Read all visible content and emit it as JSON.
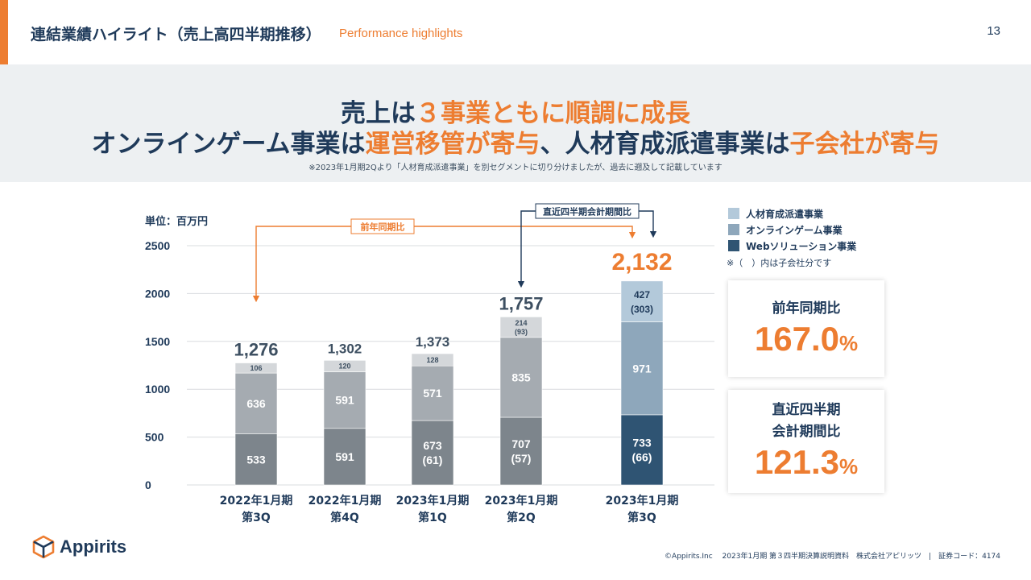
{
  "header": {
    "title": "連結業績ハイライト（売上高四半期推移）",
    "subtitle": "Performance highlights",
    "page_number": "13"
  },
  "headline": {
    "line1": [
      {
        "text": "売上は",
        "highlight": false
      },
      {
        "text": "３事業ともに順調に成長",
        "highlight": true
      }
    ],
    "line2": [
      {
        "text": "オンラインゲーム事業は",
        "highlight": false
      },
      {
        "text": "運営移管が寄与",
        "highlight": true
      },
      {
        "text": "、人材育成派遣事業は",
        "highlight": false
      },
      {
        "text": "子会社が寄与",
        "highlight": true
      }
    ],
    "note": "※2023年1月期2Qより「人材育成派遣事業」を別セグメントに切り分けましたが、過去に遡及して記載しています"
  },
  "legend": {
    "items": [
      {
        "label": "人材育成派遣事業",
        "color": "#b3c9da"
      },
      {
        "label": "オンラインゲーム事業",
        "color": "#8ea7bb"
      },
      {
        "label": "Webソリューション事業",
        "color": "#2f5473"
      }
    ],
    "note": "※（　）内は子会社分です"
  },
  "annotations": {
    "yoy_label": "前年同期比",
    "qoq_label": "直近四半期会計期間比"
  },
  "chart_data": {
    "type": "bar",
    "stacked": true,
    "unit_label": "単位：百万円",
    "ylim": [
      0,
      2500
    ],
    "yticks": [
      "0",
      "500",
      "1000",
      "1500",
      "2000",
      "2500"
    ],
    "categories": [
      [
        "2022年1月期",
        "第3Q"
      ],
      [
        "2022年1月期",
        "第4Q"
      ],
      [
        "2023年1月期",
        "第1Q"
      ],
      [
        "2023年1月期",
        "第2Q"
      ],
      [
        "2023年1月期",
        "第3Q"
      ]
    ],
    "series": [
      {
        "name": "Webソリューション事業",
        "values": [
          533,
          591,
          673,
          707,
          733
        ],
        "labels": [
          "533",
          "591",
          "673",
          "707",
          "733"
        ],
        "sublabels": [
          "",
          "",
          "(61)",
          "(57)",
          "(66)"
        ]
      },
      {
        "name": "オンラインゲーム事業",
        "values": [
          636,
          591,
          571,
          835,
          971
        ],
        "labels": [
          "636",
          "591",
          "571",
          "835",
          "971"
        ],
        "sublabels": [
          "",
          "",
          "",
          "",
          ""
        ]
      },
      {
        "name": "人材育成派遣事業",
        "values": [
          106,
          120,
          128,
          214,
          427
        ],
        "labels": [
          "106",
          "120",
          "128",
          "214",
          "427"
        ],
        "sublabels": [
          "",
          "",
          "",
          "(93)",
          "(303)"
        ]
      }
    ],
    "totals": [
      1276,
      1302,
      1373,
      1757,
      2132
    ],
    "total_labels": [
      "1,276",
      "1,302",
      "1,373",
      "1,757",
      "2,132"
    ],
    "highlight_index": 4
  },
  "kpis": [
    {
      "label_lines": [
        "前年同期比"
      ],
      "value": "167.0",
      "suffix": "%"
    },
    {
      "label_lines": [
        "直近四半期",
        "会計期間比"
      ],
      "value": "121.3",
      "suffix": "%"
    }
  ],
  "brand": {
    "name": "Appirits"
  },
  "footer": {
    "text": "©Appirits.Inc　 2023年1月期 第３四半期決算説明資料　株式会社アピリッツ　|　証券コード：4174"
  },
  "colors": {
    "accent": "#ed7d31",
    "navy": "#1f3a5a",
    "gray_dark": "#7d858c",
    "gray_mid": "#a5abb1",
    "gray_light": "#d4d7da",
    "hl_web": "#2f5473",
    "hl_game": "#8ea7bb",
    "hl_hr": "#b3c9da"
  }
}
